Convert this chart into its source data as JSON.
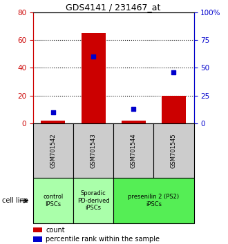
{
  "title": "GDS4141 / 231467_at",
  "samples": [
    "GSM701542",
    "GSM701543",
    "GSM701544",
    "GSM701545"
  ],
  "counts": [
    2,
    65,
    2,
    20
  ],
  "percentiles": [
    10,
    60,
    13,
    46
  ],
  "left_ylim": [
    0,
    80
  ],
  "right_ylim": [
    0,
    100
  ],
  "left_yticks": [
    0,
    20,
    40,
    60,
    80
  ],
  "right_yticks": [
    0,
    25,
    50,
    75,
    100
  ],
  "right_yticklabels": [
    "0",
    "25",
    "50",
    "75",
    "100%"
  ],
  "bar_color": "#cc0000",
  "scatter_color": "#0000cc",
  "xlabel_color_left": "#cc0000",
  "xlabel_color_right": "#0000cc",
  "bg_color_samples": "#cccccc",
  "group_defs": [
    {
      "start": 0,
      "end": 0,
      "label": "control\nIPSCs",
      "color": "#aaffaa"
    },
    {
      "start": 1,
      "end": 1,
      "label": "Sporadic\nPD-derived\niPSCs",
      "color": "#aaffaa"
    },
    {
      "start": 2,
      "end": 3,
      "label": "presenilin 2 (PS2)\niPSCs",
      "color": "#55ee55"
    }
  ],
  "cell_line_label": "cell line",
  "legend_count_label": "count",
  "legend_percentile_label": "percentile rank within the sample"
}
